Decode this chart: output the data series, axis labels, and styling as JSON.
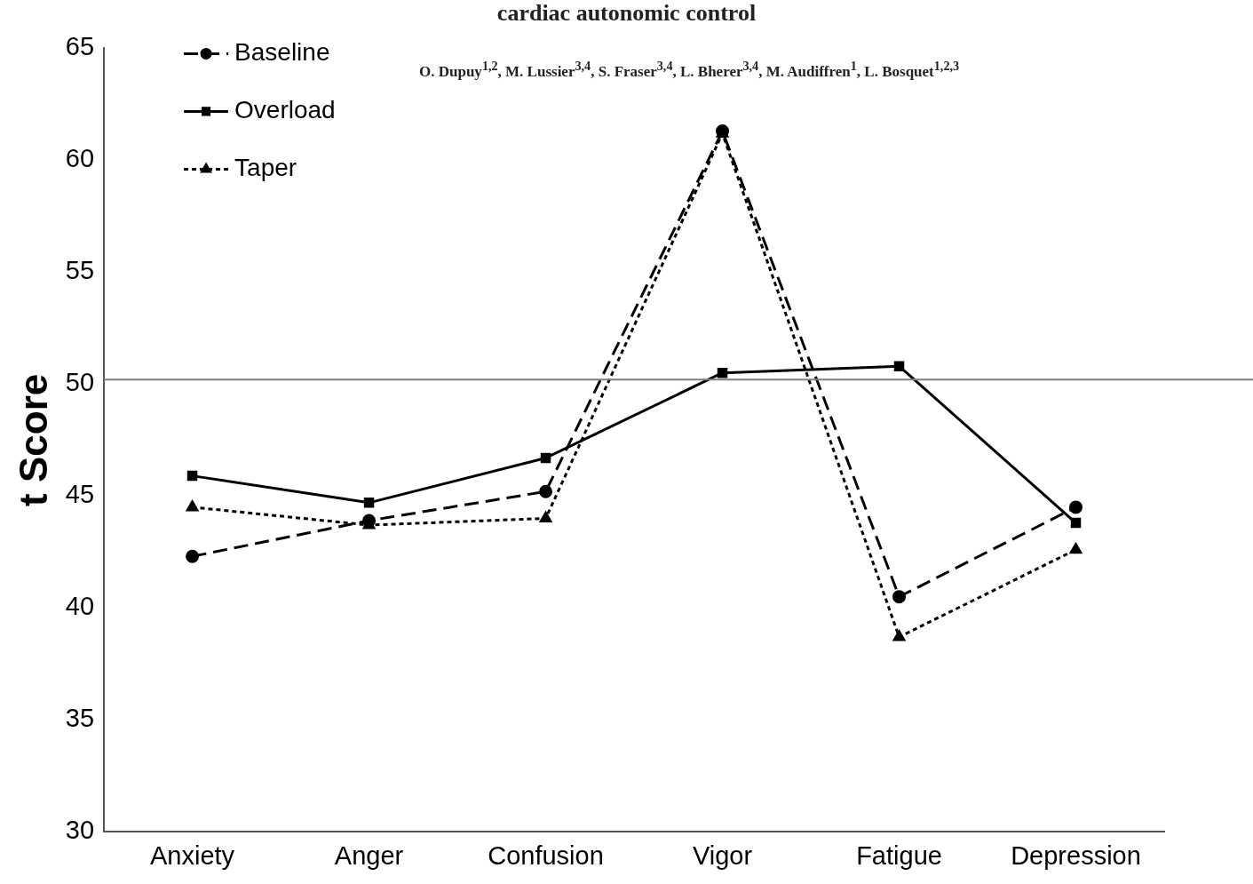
{
  "chart_data": {
    "type": "line",
    "title": "cardiac autonomic control",
    "annotations": [
      "O. Dupuy$^{1,2}$, M. Lussier$^{3,4}$, S. Fraser$^{3,4}$, L. Bherer$^{3,4}$, M. Audiffren$^{1}$, L. Bosquet$^{1,2,3}$"
    ],
    "ylabel": "t Score",
    "categories": [
      "Anxiety",
      "Anger",
      "Confusion",
      "Vigor",
      "Fatigue",
      "Depression"
    ],
    "series": [
      {
        "name": "Baseline",
        "color": "#000000",
        "marker": "circle",
        "line_style": "dashed",
        "values": [
          42.3,
          43.9,
          45.2,
          61.3,
          40.5,
          44.5
        ]
      },
      {
        "name": "Overload",
        "color": "#000000",
        "marker": "square",
        "line_style": "solid",
        "values": [
          45.9,
          44.7,
          46.7,
          50.5,
          50.8,
          43.8
        ]
      },
      {
        "name": "Taper",
        "color": "#000000",
        "marker": "triangle",
        "line_style": "dotted",
        "values": [
          44.5,
          43.7,
          44.0,
          61.2,
          38.7,
          42.6
        ]
      }
    ],
    "ylim": [
      30,
      65
    ],
    "yticks": [
      30,
      35,
      40,
      45,
      50,
      55,
      60,
      65
    ],
    "ref_lines": [
      {
        "axis": "y",
        "value": 50.2,
        "color": "#808080"
      }
    ],
    "grid": false,
    "legend": "top left"
  }
}
